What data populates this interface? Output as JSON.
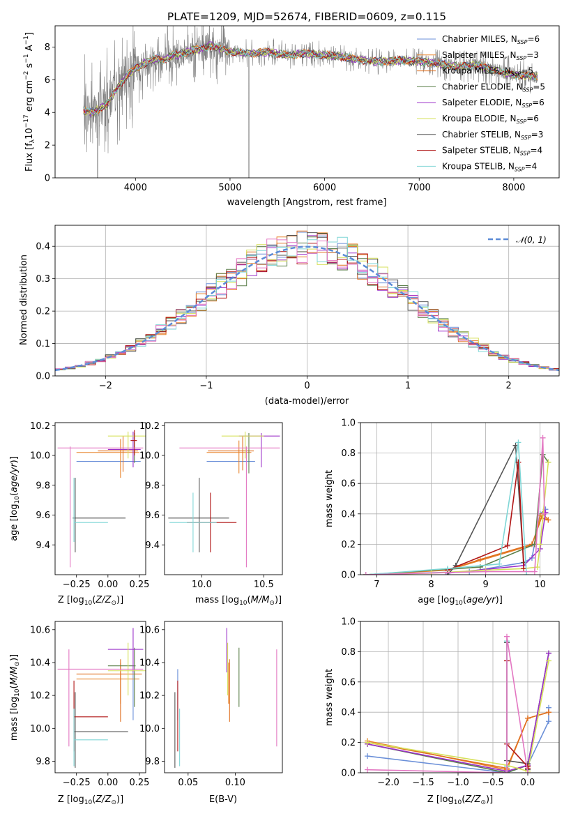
{
  "chart_data": [
    {
      "type": "line",
      "title": "PLATE=1209, MJD=52674, FIBERID=0609, z=0.115",
      "xlabel": "wavelength [Angstrom, rest frame]",
      "ylabel": "Flux [f_λ 10^-17 erg cm^-2 s^-1 A^-1]",
      "xlim": [
        3150,
        8480
      ],
      "ylim": [
        0,
        9.3
      ],
      "xticks": [
        "4000",
        "5000",
        "6000",
        "7000",
        "8000"
      ],
      "yticks": [
        "0",
        "2",
        "4",
        "6",
        "8"
      ],
      "legend_position": "top-right",
      "series": [
        {
          "name": "Chabrier MILES, N_SSP=6",
          "color": "#6a8fd8"
        },
        {
          "name": "Salpeter MILES, N_SSP=3",
          "color": "#e8832a"
        },
        {
          "name": "Kroupa MILES, N_SSP=5",
          "color": "#e07020"
        },
        {
          "name": "Chabrier ELODIE, N_SSP=5",
          "color": "#5b7f4a"
        },
        {
          "name": "Salpeter ELODIE, N_SSP=6",
          "color": "#9b30c9"
        },
        {
          "name": "Kroupa ELODIE, N_SSP=6",
          "color": "#d6e05a"
        },
        {
          "name": "Chabrier STELIB, N_SSP=3",
          "color": "#555555"
        },
        {
          "name": "Salpeter STELIB, N_SSP=4",
          "color": "#b01515"
        },
        {
          "name": "Kroupa STELIB, N_SSP=4",
          "color": "#7fd6d6"
        }
      ],
      "data_color": "#808080",
      "continuum": {
        "x": [
          3450,
          3550,
          3700,
          3800,
          3900,
          4000,
          4100,
          4200,
          4300,
          4400,
          4500,
          4600,
          4700,
          4800,
          4900,
          5000,
          5200,
          5400,
          5600,
          5800,
          6000,
          6200,
          6400,
          6600,
          6800,
          7000,
          7200,
          7400,
          7600,
          7800,
          8000,
          8250
        ],
        "y": [
          4.1,
          4.0,
          4.5,
          5.4,
          6.2,
          6.7,
          7.0,
          7.3,
          7.2,
          7.5,
          7.6,
          7.8,
          7.9,
          8.1,
          7.9,
          7.7,
          7.6,
          7.7,
          7.5,
          7.6,
          7.5,
          7.4,
          7.2,
          7.1,
          7.2,
          7.1,
          7.0,
          6.8,
          6.9,
          6.6,
          6.3,
          6.2
        ]
      },
      "grid": false
    },
    {
      "type": "histogram",
      "xlabel": "(data-model)/error",
      "ylabel": "Normed distribution",
      "xlim": [
        -2.5,
        2.5
      ],
      "ylim": [
        0,
        0.465
      ],
      "xticks": [
        "−2",
        "−1",
        "0",
        "1",
        "2"
      ],
      "yticks": [
        "0.0",
        "0.1",
        "0.2",
        "0.3",
        "0.4"
      ],
      "bin_width": 0.1,
      "reference": {
        "name": "N(0,1)",
        "label": "𝒩(0, 1)",
        "color": "#5b8bd6",
        "style": "dashed"
      },
      "legend_position": "top-right",
      "grid": true
    },
    {
      "type": "scatter",
      "xlabel": "Z [log10(Z/Z☉)]",
      "ylabel": "age  [log10(age/yr)]",
      "xlim": [
        -0.42,
        0.3
      ],
      "ylim": [
        9.2,
        10.22
      ],
      "xticks": [
        "−0.25",
        "0.00",
        "0.25"
      ],
      "yticks": [
        "9.4",
        "9.6",
        "9.8",
        "10.0",
        "10.2"
      ],
      "error_bars": [
        {
          "color": "#6a8fd8",
          "x": 0.07,
          "y": 9.96,
          "x_lo": -0.25,
          "x_hi": 0.26,
          "y_lo": 9.96,
          "y_hi": 9.96
        },
        {
          "color": "#e8832a",
          "x": 0.1,
          "y": 10.02,
          "x_lo": -0.25,
          "x_hi": 0.25,
          "y_lo": 9.85,
          "y_hi": 10.11
        },
        {
          "color": "#e07020",
          "x": 0.12,
          "y": 10.03,
          "x_lo": -0.08,
          "x_hi": 0.24,
          "y_lo": 9.89,
          "y_hi": 10.13
        },
        {
          "color": "#5b7f4a",
          "x": 0.21,
          "y": 10.1,
          "x_lo": 0.21,
          "x_hi": 0.21,
          "y_lo": 9.95,
          "y_hi": 10.15
        },
        {
          "color": "#9b30c9",
          "x": 0.2,
          "y": 10.04,
          "x_lo": 0.0,
          "x_hi": 0.26,
          "y_lo": 9.92,
          "y_hi": 10.16
        },
        {
          "color": "#d6e05a",
          "x": 0.16,
          "y": 10.13,
          "x_lo": 0.0,
          "x_hi": 0.3,
          "y_lo": 9.98,
          "y_hi": 10.16
        },
        {
          "color": "#555555",
          "x": -0.26,
          "y": 9.58,
          "x_lo": -0.28,
          "x_hi": 0.14,
          "y_lo": 9.35,
          "y_hi": 9.85
        },
        {
          "color": "#b01515",
          "x": 0.21,
          "y": 10.1,
          "x_lo": 0.18,
          "x_hi": 0.23,
          "y_lo": 10.0,
          "y_hi": 10.17
        },
        {
          "color": "#7fd6d6",
          "x": -0.27,
          "y": 9.55,
          "x_lo": -0.27,
          "x_hi": 0.0,
          "y_lo": 9.42,
          "y_hi": 9.85
        },
        {
          "color": "#e377c2",
          "x": -0.3,
          "y": 10.05,
          "x_lo": -0.4,
          "x_hi": 0.28,
          "y_lo": 9.25,
          "y_hi": 10.06
        }
      ]
    },
    {
      "type": "scatter",
      "xlabel": "mass [log10(M/M☉)]",
      "xlim": [
        9.7,
        10.65
      ],
      "ylim": [
        9.2,
        10.22
      ],
      "xticks": [
        "10.0",
        "10.5"
      ],
      "yticks": [
        "9.4",
        "9.6",
        "9.8",
        "10.0",
        "10.2"
      ],
      "error_bars": [
        {
          "color": "#6a8fd8",
          "x": 10.2,
          "y": 9.96,
          "x_lo": 10.04,
          "x_hi": 10.43,
          "y_lo": 9.96,
          "y_hi": 9.96
        },
        {
          "color": "#e8832a",
          "x": 10.3,
          "y": 10.02,
          "x_lo": 10.04,
          "x_hi": 10.4,
          "y_lo": 9.88,
          "y_hi": 10.1
        },
        {
          "color": "#e07020",
          "x": 10.33,
          "y": 10.03,
          "x_lo": 10.05,
          "x_hi": 10.42,
          "y_lo": 9.9,
          "y_hi": 10.13
        },
        {
          "color": "#5b7f4a",
          "x": 10.38,
          "y": 10.1,
          "x_lo": 10.38,
          "x_hi": 10.38,
          "y_lo": 9.88,
          "y_hi": 10.15
        },
        {
          "color": "#9b30c9",
          "x": 10.48,
          "y": 10.13,
          "x_lo": 10.3,
          "x_hi": 10.63,
          "y_lo": 9.92,
          "y_hi": 10.15
        },
        {
          "color": "#d6e05a",
          "x": 10.35,
          "y": 10.13,
          "x_lo": 10.16,
          "x_hi": 10.5,
          "y_lo": 9.98,
          "y_hi": 10.16
        },
        {
          "color": "#555555",
          "x": 9.98,
          "y": 9.58,
          "x_lo": 9.73,
          "x_hi": 10.22,
          "y_lo": 9.35,
          "y_hi": 9.85
        },
        {
          "color": "#b01515",
          "x": 10.07,
          "y": 9.55,
          "x_lo": 9.88,
          "x_hi": 10.28,
          "y_lo": 9.35,
          "y_hi": 9.75
        },
        {
          "color": "#7fd6d6",
          "x": 9.93,
          "y": 9.55,
          "x_lo": 9.74,
          "x_hi": 10.12,
          "y_lo": 9.35,
          "y_hi": 9.75
        },
        {
          "color": "#e377c2",
          "x": 10.36,
          "y": 10.05,
          "x_lo": 9.82,
          "x_hi": 10.63,
          "y_lo": 9.25,
          "y_hi": 10.06
        }
      ]
    },
    {
      "type": "line",
      "xlabel": "age  [log10(age/yr)]",
      "ylabel": "mass weight",
      "xlim": [
        6.7,
        10.35
      ],
      "ylim": [
        0,
        1.0
      ],
      "xticks": [
        "7",
        "8",
        "9",
        "10"
      ],
      "yticks": [
        "0.0",
        "0.2",
        "0.4",
        "0.6",
        "0.8",
        "1.0"
      ],
      "grid": true,
      "series": [
        {
          "color": "#6a8fd8",
          "x": [
            6.8,
            8.7,
            9.7,
            9.85,
            10.0,
            10.1
          ],
          "y": [
            0.0,
            0.02,
            0.08,
            0.11,
            0.4,
            0.43
          ]
        },
        {
          "color": "#e8832a",
          "x": [
            6.8,
            8.3,
            9.9,
            10.0,
            10.05,
            10.15
          ],
          "y": [
            0.0,
            0.03,
            0.2,
            0.39,
            0.37,
            0.36
          ]
        },
        {
          "color": "#e07020",
          "x": [
            8.3,
            8.9,
            9.85,
            10.05,
            10.15
          ],
          "y": [
            0.03,
            0.1,
            0.2,
            0.4,
            0.36
          ]
        },
        {
          "color": "#5b7f4a",
          "x": [
            6.8,
            8.9,
            9.9,
            10.05,
            10.15
          ],
          "y": [
            0.0,
            0.05,
            0.2,
            0.79,
            0.74
          ]
        },
        {
          "color": "#9b30c9",
          "x": [
            8.3,
            9.7,
            10.0,
            10.1
          ],
          "y": [
            0.01,
            0.06,
            0.17,
            0.41
          ]
        },
        {
          "color": "#d6e05a",
          "x": [
            6.8,
            8.0,
            9.0,
            9.7,
            9.95,
            10.0,
            10.15
          ],
          "y": [
            0.0,
            0.01,
            0.03,
            0.04,
            0.05,
            0.2,
            0.74
          ]
        },
        {
          "color": "#555555",
          "x": [
            8.3,
            8.45,
            9.55,
            9.7
          ],
          "y": [
            0.0,
            0.06,
            0.85,
            0.08
          ]
        },
        {
          "color": "#b01515",
          "x": [
            8.3,
            9.4,
            9.6,
            9.7
          ],
          "y": [
            0.03,
            0.19,
            0.74,
            0.04
          ]
        },
        {
          "color": "#7fd6d6",
          "x": [
            6.8,
            8.3,
            9.25,
            9.6,
            9.75
          ],
          "y": [
            0.0,
            0.04,
            0.07,
            0.87,
            0.0
          ]
        },
        {
          "color": "#e377c2",
          "x": [
            6.8,
            9.0,
            9.9,
            10.05,
            10.08
          ],
          "y": [
            0.0,
            0.02,
            0.02,
            0.9,
            0.4
          ]
        }
      ]
    },
    {
      "type": "scatter",
      "xlabel": "Z [log10(Z/Z☉)]",
      "ylabel": "mass [log10(M/M☉)]",
      "xlim": [
        -0.42,
        0.3
      ],
      "ylim": [
        9.73,
        10.65
      ],
      "xticks": [
        "−0.25",
        "0.00",
        "0.25"
      ],
      "yticks": [
        "9.8",
        "10.0",
        "10.2",
        "10.4",
        "10.6"
      ],
      "error_bars": [
        {
          "color": "#6a8fd8",
          "x": 0.2,
          "y": 10.2,
          "x_lo": 0.2,
          "x_hi": 0.2,
          "y_lo": 10.05,
          "y_hi": 10.36
        },
        {
          "color": "#e8832a",
          "x": 0.1,
          "y": 10.3,
          "x_lo": -0.25,
          "x_hi": 0.25,
          "y_lo": 10.15,
          "y_hi": 10.4
        },
        {
          "color": "#e07020",
          "x": 0.1,
          "y": 10.33,
          "x_lo": -0.25,
          "x_hi": 0.27,
          "y_lo": 10.04,
          "y_hi": 10.42
        },
        {
          "color": "#5b7f4a",
          "x": 0.21,
          "y": 10.38,
          "x_lo": 0.0,
          "x_hi": 0.22,
          "y_lo": 10.13,
          "y_hi": 10.49
        },
        {
          "color": "#9b30c9",
          "x": 0.2,
          "y": 10.48,
          "x_lo": 0.0,
          "x_hi": 0.28,
          "y_lo": 10.34,
          "y_hi": 10.61
        },
        {
          "color": "#d6e05a",
          "x": 0.16,
          "y": 10.35,
          "x_lo": 0.0,
          "x_hi": 0.3,
          "y_lo": 10.2,
          "y_hi": 10.52
        },
        {
          "color": "#555555",
          "x": -0.26,
          "y": 9.98,
          "x_lo": -0.27,
          "x_hi": 0.16,
          "y_lo": 9.76,
          "y_hi": 10.22
        },
        {
          "color": "#b01515",
          "x": -0.27,
          "y": 10.07,
          "x_lo": -0.27,
          "x_hi": 0.0,
          "y_lo": 9.86,
          "y_hi": 10.29
        },
        {
          "color": "#7fd6d6",
          "x": -0.27,
          "y": 9.93,
          "x_lo": -0.27,
          "x_hi": 0.0,
          "y_lo": 9.77,
          "y_hi": 10.12
        },
        {
          "color": "#e377c2",
          "x": -0.31,
          "y": 10.36,
          "x_lo": -0.4,
          "x_hi": 0.28,
          "y_lo": 9.89,
          "y_hi": 10.48
        }
      ]
    },
    {
      "type": "scatter",
      "xlabel": "E(B-V)",
      "xlim": [
        0.025,
        0.15
      ],
      "ylim": [
        9.73,
        10.65
      ],
      "xticks": [
        "0.05",
        "0.10"
      ],
      "yticks": [
        "9.8",
        "10.0",
        "10.2",
        "10.4",
        "10.6"
      ],
      "error_bars": [
        {
          "color": "#6a8fd8",
          "x": 0.039,
          "y": 10.2,
          "y_lo": 10.05,
          "y_hi": 10.36
        },
        {
          "color": "#e8832a",
          "x": 0.093,
          "y": 10.3,
          "y_lo": 10.15,
          "y_hi": 10.4
        },
        {
          "color": "#e07020",
          "x": 0.094,
          "y": 10.22,
          "y_lo": 10.04,
          "y_hi": 10.42
        },
        {
          "color": "#5b7f4a",
          "x": 0.104,
          "y": 10.38,
          "y_lo": 10.13,
          "y_hi": 10.49
        },
        {
          "color": "#9b30c9",
          "x": 0.091,
          "y": 10.48,
          "y_lo": 10.34,
          "y_hi": 10.61
        },
        {
          "color": "#d6e05a",
          "x": 0.092,
          "y": 10.35,
          "y_lo": 10.2,
          "y_hi": 10.52
        },
        {
          "color": "#555555",
          "x": 0.036,
          "y": 9.98,
          "y_lo": 9.76,
          "y_hi": 10.22
        },
        {
          "color": "#b01515",
          "x": 0.039,
          "y": 10.07,
          "y_lo": 9.86,
          "y_hi": 10.29
        },
        {
          "color": "#7fd6d6",
          "x": 0.041,
          "y": 9.93,
          "y_lo": 9.77,
          "y_hi": 10.12
        },
        {
          "color": "#e377c2",
          "x": 0.144,
          "y": 10.18,
          "y_lo": 9.89,
          "y_hi": 10.48
        }
      ]
    },
    {
      "type": "line",
      "xlabel": "Z [log10(Z/Z☉)]",
      "ylabel": "mass weight",
      "xlim": [
        -2.4,
        0.45
      ],
      "ylim": [
        0,
        1.0
      ],
      "xticks": [
        "−2.0",
        "−1.5",
        "−1.0",
        "−0.5",
        "0.0"
      ],
      "yticks": [
        "0.0",
        "0.2",
        "0.4",
        "0.6",
        "0.8",
        "1.0"
      ],
      "grid": true,
      "series": [
        {
          "color": "#6a8fd8",
          "x": [
            -2.3,
            -0.3,
            0.0,
            0.3,
            0.3
          ],
          "y": [
            0.11,
            0.0,
            0.05,
            0.34,
            0.43
          ]
        },
        {
          "color": "#e8832a",
          "x": [
            -2.3,
            -0.3,
            0.0,
            0.3
          ],
          "y": [
            0.21,
            0.02,
            0.36,
            0.4
          ]
        },
        {
          "color": "#e07020",
          "x": [
            -2.3,
            -0.3,
            0.0,
            0.3
          ],
          "y": [
            0.2,
            0.03,
            0.36,
            0.4
          ]
        },
        {
          "color": "#5b7f4a",
          "x": [
            -2.3,
            -0.3,
            0.0,
            0.3
          ],
          "y": [
            0.19,
            0.0,
            0.05,
            0.79
          ]
        },
        {
          "color": "#9b30c9",
          "x": [
            -2.3,
            -0.3,
            0.0,
            0.3
          ],
          "y": [
            0.19,
            0.01,
            0.05,
            0.79
          ]
        },
        {
          "color": "#d6e05a",
          "x": [
            -2.3,
            -0.3,
            0.0,
            0.3
          ],
          "y": [
            0.2,
            0.05,
            0.01,
            0.74
          ]
        },
        {
          "color": "#555555",
          "x": [
            -0.3,
            -0.3,
            0.0,
            0.0
          ],
          "y": [
            0.86,
            0.08,
            0.06,
            0.02
          ]
        },
        {
          "color": "#b01515",
          "x": [
            -0.3,
            -0.3,
            0.0,
            0.0
          ],
          "y": [
            0.74,
            0.19,
            0.04,
            0.03
          ]
        },
        {
          "color": "#7fd6d6",
          "x": [
            -0.3,
            -0.3,
            -0.3
          ],
          "y": [
            0.87,
            0.04,
            0.0
          ]
        },
        {
          "color": "#e377c2",
          "x": [
            -2.3,
            -0.3,
            -0.3,
            0.0
          ],
          "y": [
            0.02,
            0.0,
            0.9,
            0.0
          ]
        }
      ]
    }
  ]
}
